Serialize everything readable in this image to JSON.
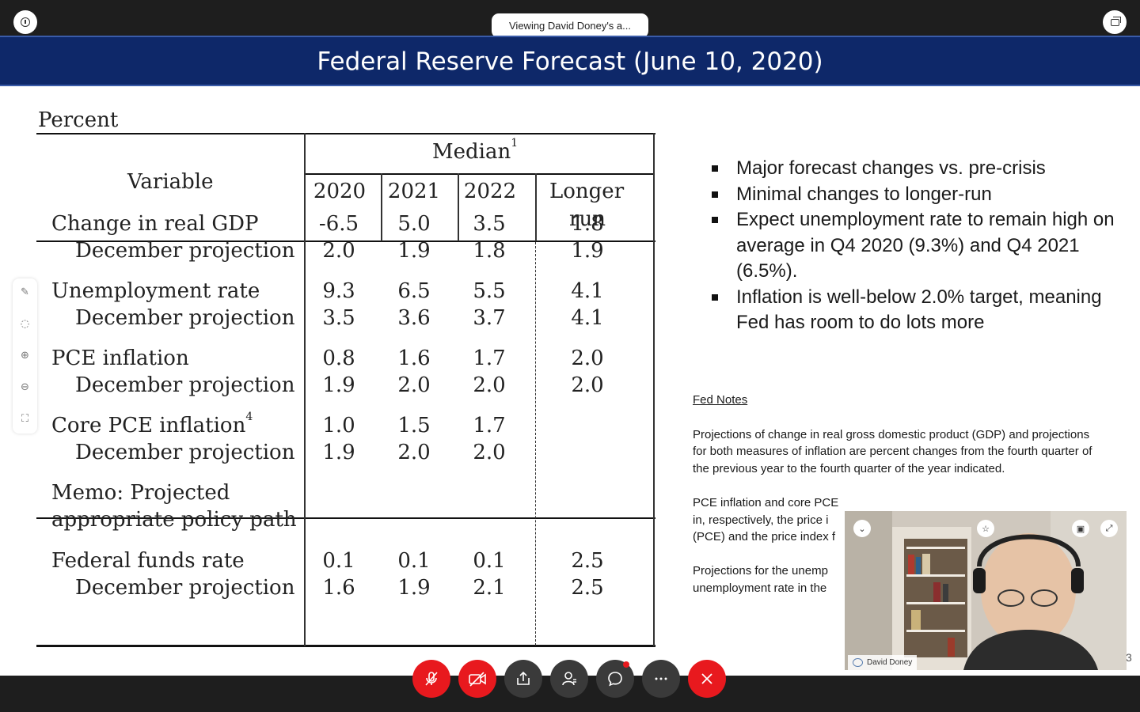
{
  "topbar": {
    "viewing_text": "Viewing David Doney's a..."
  },
  "slide": {
    "title": "Federal Reserve Forecast (June 10, 2020)",
    "table": {
      "unit_label": "Percent",
      "variable_header": "Variable",
      "median_header": "Median",
      "median_footnote": "1",
      "year_headers": [
        "2020",
        "2021",
        "2022",
        "Longer",
        "run"
      ],
      "rows": [
        {
          "label": "Change in real GDP",
          "values": [
            "-6.5",
            "5.0",
            "3.5",
            "1.8"
          ]
        },
        {
          "label": "December projection",
          "values": [
            "2.0",
            "1.9",
            "1.8",
            "1.9"
          ]
        },
        {
          "label": "Unemployment rate",
          "values": [
            "9.3",
            "6.5",
            "5.5",
            "4.1"
          ]
        },
        {
          "label": "December projection",
          "values": [
            "3.5",
            "3.6",
            "3.7",
            "4.1"
          ]
        },
        {
          "label": "PCE inflation",
          "values": [
            "0.8",
            "1.6",
            "1.7",
            "2.0"
          ]
        },
        {
          "label": "December projection",
          "values": [
            "1.9",
            "2.0",
            "2.0",
            "2.0"
          ]
        },
        {
          "label": "Core PCE inflation",
          "footnote": "4",
          "values": [
            "1.0",
            "1.5",
            "1.7",
            ""
          ]
        },
        {
          "label": "December projection",
          "values": [
            "1.9",
            "2.0",
            "2.0",
            ""
          ]
        },
        {
          "label": "Memo: Projected",
          "values": [
            "",
            "",
            "",
            ""
          ]
        },
        {
          "label": "appropriate policy path",
          "values": [
            "",
            "",
            "",
            ""
          ]
        },
        {
          "label": "Federal funds rate",
          "values": [
            "0.1",
            "0.1",
            "0.1",
            "2.5"
          ]
        },
        {
          "label": "December projection",
          "values": [
            "1.6",
            "1.9",
            "2.1",
            "2.5"
          ]
        }
      ]
    },
    "bullets": [
      "Major forecast changes vs. pre-crisis",
      "Minimal changes to longer-run",
      "Expect unemployment rate to remain high on average in Q4 2020 (9.3%) and Q4 2021 (6.5%).",
      "Inflation is well-below 2.0% target, meaning Fed has room to do lots more"
    ],
    "notes": {
      "title": "Fed Notes",
      "paragraphs": [
        "Projections of change in real gross domestic product (GDP) and projections for both measures of inflation are percent changes from the fourth quarter of the previous year to the fourth quarter of the year indicated.",
        "PCE inflation and core PCE in, respectively, the price i (PCE) and the price index f",
        "Projections for the unemp unemployment rate in the"
      ]
    },
    "page_number": "3"
  },
  "video": {
    "participant_name": "David Doney"
  },
  "controls": [
    "mute",
    "stop-video",
    "share",
    "participants",
    "chat",
    "more",
    "end"
  ],
  "colors": {
    "header_bg": "#0e2869",
    "control_red": "#e8191e",
    "control_dark": "#3a3a3a"
  }
}
